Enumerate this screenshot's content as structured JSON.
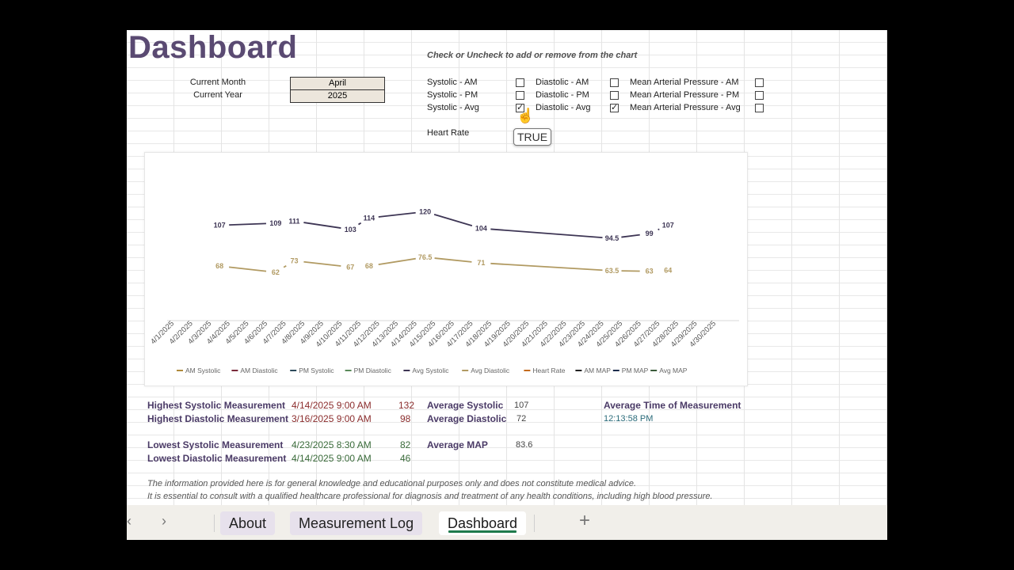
{
  "sheet": {
    "title": "Dashboard",
    "instruction": "Check or Uncheck to add or remove from the chart",
    "current_month_label": "Current Month",
    "current_month_value": "April",
    "current_year_label": "Current Year",
    "current_year_value": "2025",
    "heart_rate_label": "Heart Rate",
    "tooltip": "TRUE"
  },
  "checkboxes": [
    {
      "label": "Systolic - AM",
      "checked": false
    },
    {
      "label": "Systolic - PM",
      "checked": false
    },
    {
      "label": "Systolic - Avg",
      "checked": true
    },
    {
      "label": "Diastolic - AM",
      "checked": false
    },
    {
      "label": "Diastolic - PM",
      "checked": false
    },
    {
      "label": "Diastolic - Avg",
      "checked": true
    },
    {
      "label": "Mean Arterial Pressure - AM",
      "checked": false
    },
    {
      "label": "Mean Arterial Pressure - PM",
      "checked": false
    },
    {
      "label": "Mean Arterial Pressure - Avg",
      "checked": false
    }
  ],
  "chart_data": {
    "type": "line",
    "x": [
      "4/1/2025",
      "4/2/2025",
      "4/3/2025",
      "4/4/2025",
      "4/5/2025",
      "4/6/2025",
      "4/7/2025",
      "4/8/2025",
      "4/9/2025",
      "4/10/2025",
      "4/11/2025",
      "4/12/2025",
      "4/13/2025",
      "4/14/2025",
      "4/15/2025",
      "4/16/2025",
      "4/17/2025",
      "4/18/2025",
      "4/19/2025",
      "4/20/2025",
      "4/21/2025",
      "4/22/2025",
      "4/23/2025",
      "4/24/2025",
      "4/25/2025",
      "4/26/2025",
      "4/27/2025",
      "4/28/2025",
      "4/29/2025",
      "4/30/2025"
    ],
    "series": [
      {
        "name": "Avg Systolic",
        "color": "#3d3554",
        "values": [
          null,
          null,
          107,
          null,
          null,
          109,
          111,
          null,
          null,
          103,
          114,
          null,
          null,
          120,
          null,
          null,
          104,
          null,
          null,
          null,
          null,
          null,
          null,
          94.5,
          null,
          99,
          107,
          null,
          null,
          null
        ]
      },
      {
        "name": "Avg Diastolic",
        "color": "#b19a62",
        "values": [
          null,
          null,
          68,
          null,
          null,
          62,
          73,
          null,
          null,
          67,
          68,
          null,
          null,
          76.5,
          null,
          null,
          71,
          null,
          null,
          null,
          null,
          null,
          null,
          63.5,
          null,
          63,
          64,
          null,
          null,
          null
        ]
      }
    ],
    "legend": [
      "AM Systolic",
      "AM Diastolic",
      "PM Systolic",
      "PM Diastolic",
      "Avg Systolic",
      "Avg Diastolic",
      "Heart Rate",
      "AM MAP",
      "PM MAP",
      "Avg MAP"
    ],
    "legend_colors": [
      "#b08a3c",
      "#7a2a3a",
      "#2c4a5a",
      "#5a8a5a",
      "#3d3554",
      "#b19a62",
      "#c46a1c",
      "#222222",
      "#1c2c4c",
      "#3a5a3a"
    ],
    "legend_position": "bottom",
    "ylim": [
      40,
      140
    ],
    "grid": false
  },
  "stats": {
    "highest_systolic_label": "Highest Systolic Measurement",
    "highest_systolic_date": "4/14/2025 9:00 AM",
    "highest_systolic_value": "132",
    "highest_diastolic_label": "Highest Diastolic Measurement",
    "highest_diastolic_date": "3/16/2025 9:00 AM",
    "highest_diastolic_value": "98",
    "lowest_systolic_label": "Lowest Systolic Measurement",
    "lowest_systolic_date": "4/23/2025 8:30 AM",
    "lowest_systolic_value": "82",
    "lowest_diastolic_label": "Lowest Diastolic Measurement",
    "lowest_diastolic_date": "4/14/2025 9:00 AM",
    "lowest_diastolic_value": "46",
    "avg_systolic_label": "Average Systolic",
    "avg_systolic_value": "107",
    "avg_diastolic_label": "Average Diastolic",
    "avg_diastolic_value": "72",
    "avg_map_label": "Average MAP",
    "avg_map_value": "83.6",
    "avg_time_label": "Average Time of Measurement",
    "avg_time_value": "12:13:58 PM"
  },
  "disclaimer": {
    "line1": "The information provided here is for general knowledge and educational purposes only and does not constitute medical advice.",
    "line2": "It is essential to consult with a qualified healthcare professional for diagnosis and treatment of any health conditions, including high blood pressure."
  },
  "tabs": [
    {
      "label": "About",
      "active": false
    },
    {
      "label": "Measurement Log",
      "active": false
    },
    {
      "label": "Dashboard",
      "active": true
    }
  ],
  "tabbar": {
    "prev_icon": "‹",
    "next_icon": "›",
    "add_icon": "+"
  }
}
